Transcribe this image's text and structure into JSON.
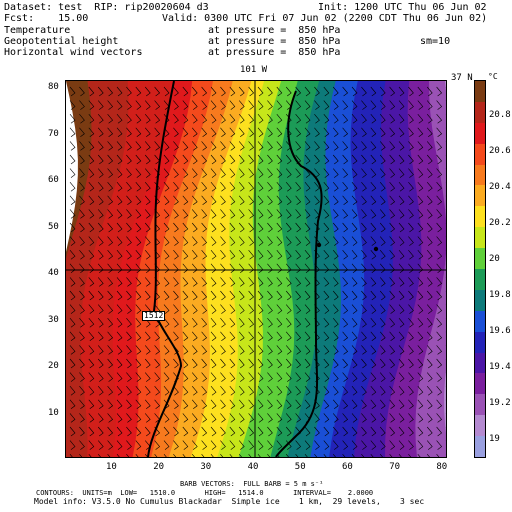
{
  "header": {
    "line1_left": "Dataset: test  RIP: rip20020604 d3",
    "line1_right": "Init: 1200 UTC Thu 06 Jun 02",
    "line2_left": "Fcst:    15.00",
    "line2_right": "Valid: 0300 UTC Fri 07 Jun 02 (2200 CDT Thu 06 Jun 02)",
    "rows": [
      {
        "field": "Temperature",
        "level": "at pressure =  850 hPa"
      },
      {
        "field": "Geopotential height",
        "level": "at pressure =  850 hPa",
        "extra": "sm=10"
      },
      {
        "field": "Horizontal wind vectors",
        "level": "at pressure =  850 hPa"
      }
    ]
  },
  "plot": {
    "meridian_label": "101 W",
    "parallel_label": "37 N",
    "contour_label": "1512",
    "x_ticks": [
      "10",
      "20",
      "30",
      "40",
      "50",
      "60",
      "70",
      "80"
    ],
    "y_ticks": [
      "80",
      "70",
      "60",
      "50",
      "40",
      "30",
      "20",
      "10"
    ]
  },
  "colorbar": {
    "unit": "°C",
    "labels": [
      "20.8",
      "20.6",
      "20.4",
      "20.2",
      "20",
      "19.8",
      "19.6",
      "19.4",
      "19.2",
      "19"
    ],
    "colors": [
      "#7a3b12",
      "#b4261a",
      "#e0191c",
      "#f44a1c",
      "#f77a1e",
      "#fbab21",
      "#fde01f",
      "#c7e61a",
      "#5fd03a",
      "#1c9b57",
      "#0d7a7a",
      "#1a4fd6",
      "#2323b8",
      "#4b16a6",
      "#7a1f9e",
      "#9a52b5",
      "#b48ad0",
      "#9aa0e0"
    ]
  },
  "footer": {
    "barb_line1": "BARB VECTORS:  FULL BARB = 5 m s⁻¹",
    "contours_line": "CONTOURS:  UNITS=m  LOW=   1510.0       HIGH=   1514.0       INTERVAL=    2.0000",
    "model_line": "Model info: V3.5.0 No Cumulus Blackadar  Simple ice    1 km,  29 levels,    3 sec"
  }
}
